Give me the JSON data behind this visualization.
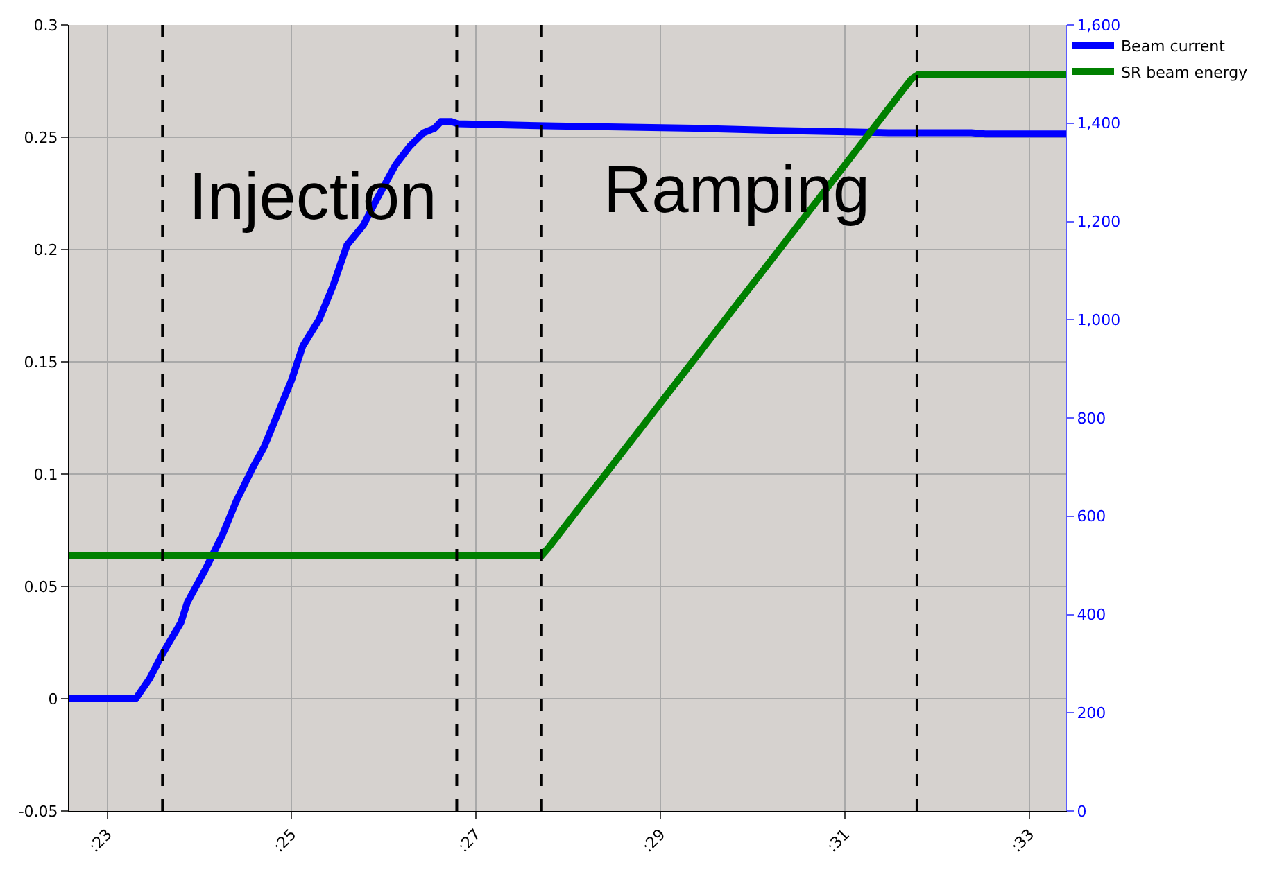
{
  "chart_data": {
    "type": "line",
    "xlim": [
      22.59,
      33.39
    ],
    "xticks": [
      {
        "value": 23,
        "label": ":23"
      },
      {
        "value": 25,
        "label": ":25"
      },
      {
        "value": 27,
        "label": ":27"
      },
      {
        "value": 29,
        "label": ":29"
      },
      {
        "value": 31,
        "label": ":31"
      },
      {
        "value": 33,
        "label": ":33"
      }
    ],
    "ylim": [
      -0.05,
      0.3
    ],
    "yticks": [
      -0.05,
      0,
      0.05,
      0.1,
      0.15,
      0.2,
      0.25,
      0.3
    ],
    "y2lim": [
      0,
      1600
    ],
    "y2ticks": [
      0,
      200,
      400,
      600,
      800,
      {
        "value": 1000,
        "label": "1,000"
      },
      {
        "value": 1200,
        "label": "1,200"
      },
      {
        "value": 1400,
        "label": "1,400"
      },
      {
        "value": 1600,
        "label": "1,600"
      }
    ],
    "grid": true,
    "legend": "top right",
    "series": [
      {
        "name": "Beam current",
        "color": "#0000ff",
        "x": [
          22.59,
          23.31,
          23.46,
          23.6,
          23.8,
          23.87,
          24.07,
          24.25,
          24.4,
          24.58,
          24.7,
          24.85,
          25.0,
          25.12,
          25.3,
          25.45,
          25.6,
          25.78,
          25.93,
          26.13,
          26.28,
          26.43,
          26.55,
          26.62,
          26.73,
          26.8,
          27.86,
          29.36,
          30.26,
          31.47,
          32.37,
          32.52,
          33.39
        ],
        "values": [
          0,
          0,
          0.009,
          0.02,
          0.034,
          0.043,
          0.058,
          0.073,
          0.088,
          0.103,
          0.112,
          0.127,
          0.142,
          0.157,
          0.169,
          0.184,
          0.202,
          0.211,
          0.223,
          0.238,
          0.246,
          0.252,
          0.254,
          0.257,
          0.257,
          0.256,
          0.255,
          0.254,
          0.253,
          0.252,
          0.252,
          0.2515,
          0.2515
        ]
      },
      {
        "name": "SR beam energy",
        "color": "#008000",
        "axis": "y2",
        "x": [
          22.59,
          27.71,
          27.78,
          31.72,
          31.8,
          33.39
        ],
        "values": [
          520,
          520,
          535,
          1490,
          1500,
          1500
        ]
      }
    ],
    "ref_lines": [
      {
        "axis": "x",
        "value": 23.6,
        "color": "#000000",
        "line_style": "dashed"
      },
      {
        "axis": "x",
        "value": 26.79,
        "color": "#000000",
        "line_style": "dashed"
      },
      {
        "axis": "x",
        "value": 27.71,
        "color": "#000000",
        "line_style": "dashed"
      },
      {
        "axis": "x",
        "value": 31.78,
        "color": "#000000",
        "line_style": "dashed"
      }
    ],
    "annotations": [
      "Injection",
      "Ramping"
    ]
  }
}
